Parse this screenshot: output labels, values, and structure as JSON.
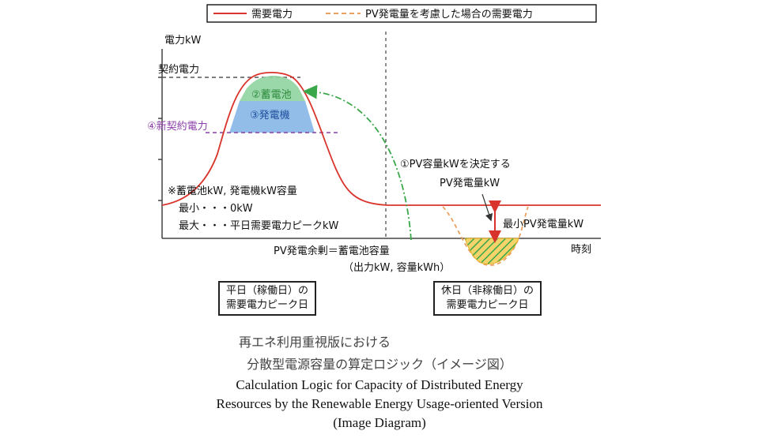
{
  "legend": {
    "demand": "需要電力",
    "with_pv": "PV発電量を考慮した場合の需要電力"
  },
  "axes": {
    "y_label": "電力kW",
    "x_label": "時刻"
  },
  "levels": {
    "contract": "契約電力",
    "new_contract": "④新契約電力"
  },
  "bands": {
    "battery": "②蓄電池",
    "generator": "③発電機"
  },
  "notes": {
    "capacity_title": "※蓄電池kW, 発電機kW容量",
    "capacity_min": "最小・・・0kW",
    "capacity_max": "最大・・・平日需要電力ピークkW"
  },
  "pv": {
    "decide": "①PV容量kWを決定する",
    "generation": "PV発電量kW",
    "min_generation": "最小PV発電量kW",
    "surplus": "PV発電余剰＝蓄電池容量",
    "surplus_detail": "（出力kW, 容量kWh）"
  },
  "days": {
    "weekday_line1": "平日（稼働日）の",
    "weekday_line2": "需要電力ピーク日",
    "holiday_line1": "休日（非稼働日）の",
    "holiday_line2": "需要電力ピーク日"
  },
  "caption": {
    "jp_line1": "再エネ利用重視版における",
    "jp_line2": "分散型電源容量の算定ロジック（イメージ図）",
    "en_line1": "Calculation Logic for Capacity of Distributed Energy",
    "en_line2": "Resources by the Renewable Energy Usage-oriented Version",
    "en_line3": "(Image Diagram)"
  },
  "colors": {
    "demand": "#d9342b",
    "with_pv": "#e8a060",
    "battery": "#8fd3a0",
    "generator": "#7fb2e5",
    "new_contract": "#8a3fa8",
    "arrow_green": "#3aa84a",
    "pv_hatch": "#e6b020"
  }
}
